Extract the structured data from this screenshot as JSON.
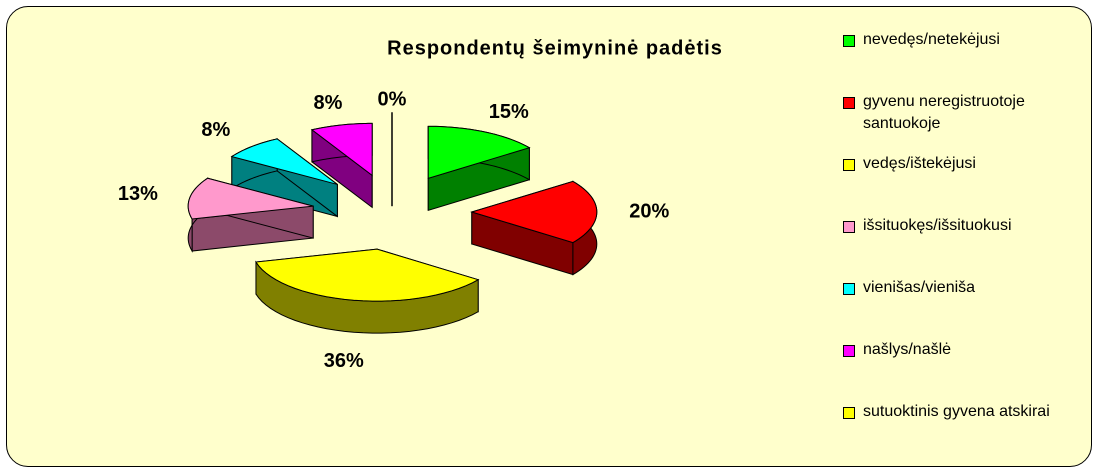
{
  "chart_data": {
    "type": "pie3d",
    "title": "Respondentų šeimyninė padėtis",
    "categories": [
      "nevedęs/netekėjusi",
      "gyvenu neregistruotoje santuokoje",
      "vedęs/ištekėjusi",
      "išsituokęs/išsituokusi",
      "vienišas/vieniša",
      "našlys/našlė",
      "sutuoktinis gyvena atskirai"
    ],
    "values": [
      15,
      20,
      36,
      13,
      8,
      8,
      0
    ],
    "value_labels": [
      "15%",
      "20%",
      "36%",
      "13%",
      "8%",
      "8%",
      "0%"
    ],
    "colors": [
      "#00ff00",
      "#ff0000",
      "#ffff00",
      "#ff99cc",
      "#00ffff",
      "#ff00ff",
      "#ffff00"
    ],
    "side_colors": [
      "#008000",
      "#800000",
      "#808000",
      "#8c4a6a",
      "#008080",
      "#800080",
      "#808000"
    ],
    "legend": "right"
  }
}
